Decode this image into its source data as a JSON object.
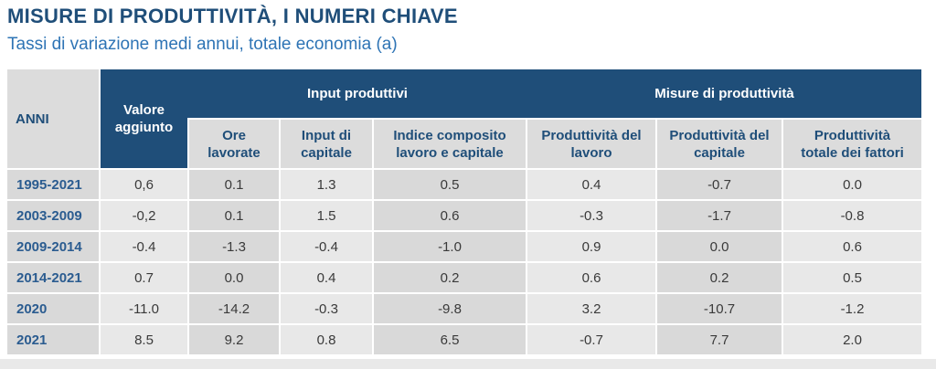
{
  "page": {
    "title": "MISURE DI PRODUTTIVITÀ, I NUMERI CHIAVE",
    "subtitle": "Tassi di variazione medi annui, totale economia (a)"
  },
  "colors": {
    "navy_header": "#1F4E79",
    "title_text": "#1F4E79",
    "subtitle_text": "#2E74B5",
    "header_gray": "#DCDCDC",
    "column_dark": "#D9D9D9",
    "column_light": "#E8E8E8",
    "row_label_text": "#2B5C90",
    "footer_band": "#E9E9E9"
  },
  "table": {
    "corner_label": "ANNI",
    "col_value_added": "Valore\naggiunto",
    "group_inputs": "Input produttivi",
    "group_productivity": "Misure di produttività",
    "subheaders": [
      "Ore\nlavorate",
      "Input di\ncapitale",
      "Indice composito\nlavoro e capitale",
      "Produttività del\nlavoro",
      "Produttività del\ncapitale",
      "Produttività\ntotale dei fattori"
    ],
    "rows": [
      {
        "label": "1995-2021",
        "values": [
          "0,6",
          "0.1",
          "1.3",
          "0.5",
          "0.4",
          "-0.7",
          "0.0"
        ]
      },
      {
        "label": "2003-2009",
        "values": [
          "-0,2",
          "0.1",
          "1.5",
          "0.6",
          "-0.3",
          "-1.7",
          "-0.8"
        ]
      },
      {
        "label": "2009-2014",
        "values": [
          "-0.4",
          "-1.3",
          "-0.4",
          "-1.0",
          "0.9",
          "0.0",
          "0.6"
        ]
      },
      {
        "label": "2014-2021",
        "values": [
          "0.7",
          "0.0",
          "0.4",
          "0.2",
          "0.6",
          "0.2",
          "0.5"
        ]
      },
      {
        "label": "2020",
        "values": [
          "-11.0",
          "-14.2",
          "-0.3",
          "-9.8",
          "3.2",
          "-10.7",
          "-1.2"
        ]
      },
      {
        "label": "2021",
        "values": [
          "8.5",
          "9.2",
          "0.8",
          "6.5",
          "-0.7",
          "7.7",
          "2.0"
        ]
      }
    ]
  },
  "chart_data": {
    "type": "table",
    "title": "MISURE DI PRODUTTIVITÀ, I NUMERI CHIAVE",
    "subtitle": "Tassi di variazione medi annui, totale economia (a)",
    "row_header": "ANNI",
    "columns": [
      "Valore aggiunto",
      "Ore lavorate",
      "Input di capitale",
      "Indice composito lavoro e capitale",
      "Produttività del lavoro",
      "Produttività del capitale",
      "Produttività totale dei fattori"
    ],
    "column_groups": [
      {
        "label": "Input produttivi",
        "columns": [
          "Ore lavorate",
          "Input di capitale",
          "Indice composito lavoro e capitale"
        ]
      },
      {
        "label": "Misure di produttività",
        "columns": [
          "Produttività del lavoro",
          "Produttività del capitale",
          "Produttività totale dei fattori"
        ]
      }
    ],
    "rows": [
      "1995-2021",
      "2003-2009",
      "2009-2014",
      "2014-2021",
      "2020",
      "2021"
    ],
    "values": [
      [
        0.6,
        0.1,
        1.3,
        0.5,
        0.4,
        -0.7,
        0.0
      ],
      [
        -0.2,
        0.1,
        1.5,
        0.6,
        -0.3,
        -1.7,
        -0.8
      ],
      [
        -0.4,
        -1.3,
        -0.4,
        -1.0,
        0.9,
        0.0,
        0.6
      ],
      [
        0.7,
        0.0,
        0.4,
        0.2,
        0.6,
        0.2,
        0.5
      ],
      [
        -11.0,
        -14.2,
        -0.3,
        -9.8,
        3.2,
        -10.7,
        -1.2
      ],
      [
        8.5,
        9.2,
        0.8,
        6.5,
        -0.7,
        7.7,
        2.0
      ]
    ]
  }
}
